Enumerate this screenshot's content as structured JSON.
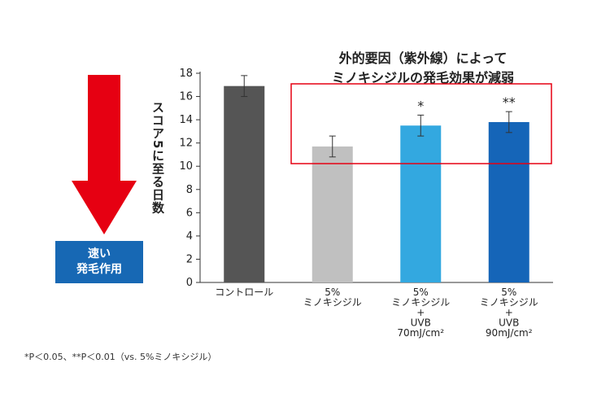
{
  "chart_data": {
    "type": "bar",
    "title": "外的要因（紫外線）によって\nミノキシジルの発毛効果が減弱",
    "ylabel": "スコア5に至る日数",
    "ylim": [
      0,
      18
    ],
    "yticks": [
      0,
      2,
      4,
      6,
      8,
      10,
      12,
      14,
      16,
      18
    ],
    "categories": [
      "コントロール",
      "5%\nミノキシジル",
      "5%\nミノキシジル\n+\nUVB\n70mJ/cm²",
      "5%\nミノキシジル\n+\nUVB\n90mJ/cm²"
    ],
    "values": [
      16.9,
      11.7,
      13.5,
      13.8
    ],
    "errors": [
      0.9,
      0.9,
      0.9,
      0.9
    ],
    "significance": [
      "",
      "",
      "*",
      "**"
    ],
    "colors": [
      "#555555",
      "#c0c0c0",
      "#33a8e0",
      "#1565b8"
    ],
    "grid": false
  },
  "left_panel": {
    "badge_line1": "速い",
    "badge_line2": "発毛作用"
  },
  "footnote": "*P＜0.05、**P＜0.01（vs. 5%ミノキシジル）",
  "colors": {
    "arrow": "#e60012",
    "highlight_box": "#e60012",
    "badge": "#1768b4"
  }
}
